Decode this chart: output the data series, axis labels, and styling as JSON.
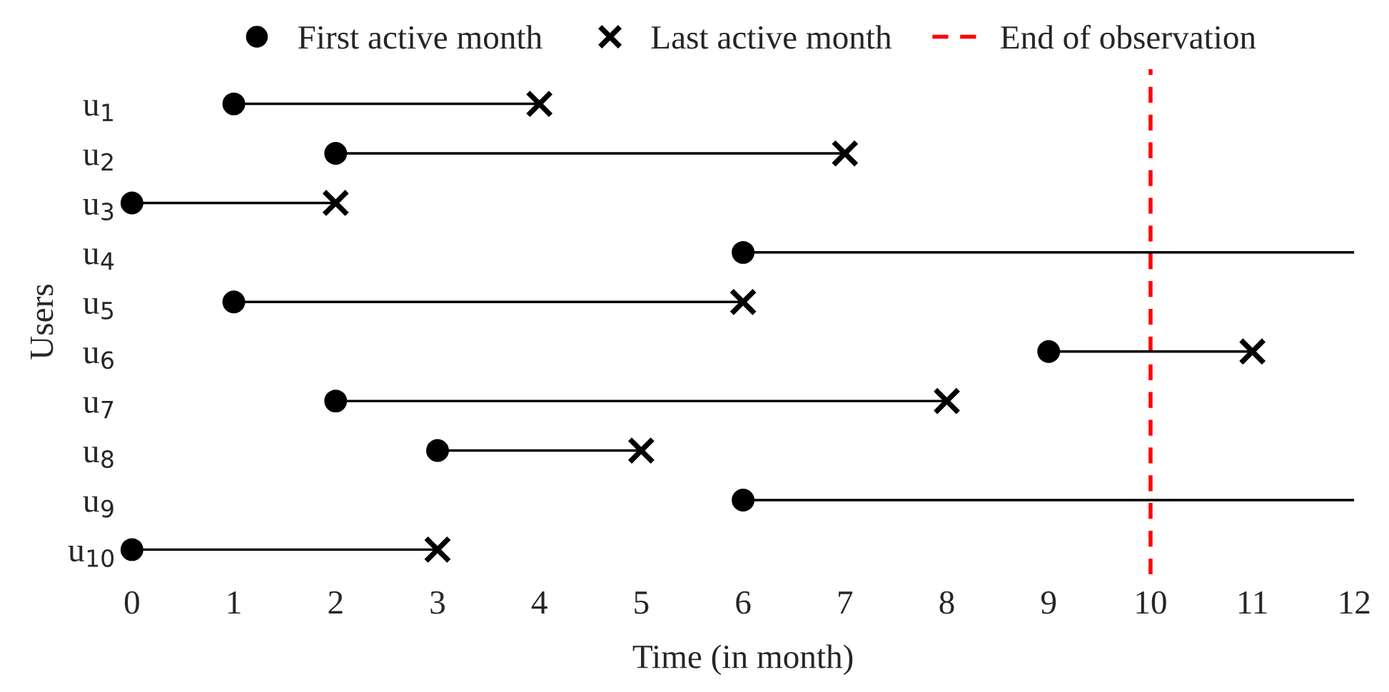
{
  "chart_data": {
    "type": "scatter",
    "orientation": "horizontal",
    "xlabel": "Time (in month)",
    "ylabel": "Users",
    "categories": [
      "u$_{1}$",
      "u$_{2}$",
      "u$_{3}$",
      "u$_{4}$",
      "u$_{5}$",
      "u$_{6}$",
      "u$_{7}$",
      "u$_{8}$",
      "u$_{9}$",
      "u$_{10}$"
    ],
    "series": [
      {
        "type": "bar",
        "color": "#000000",
        "base": [
          1,
          2,
          0,
          6,
          1,
          9,
          2,
          3,
          6,
          0
        ],
        "values": [
          3,
          5,
          2,
          6,
          5,
          2,
          6,
          2,
          6,
          3
        ]
      },
      {
        "name": "First active month",
        "color": "#000000",
        "marker": "circle",
        "values": [
          1,
          2,
          0,
          6,
          1,
          9,
          2,
          3,
          6,
          0
        ]
      },
      {
        "name": "Last active month",
        "color": "#000000",
        "marker": "cross",
        "values": [
          4,
          7,
          2,
          null,
          6,
          11,
          8,
          5,
          null,
          3
        ]
      }
    ],
    "xlim": [
      0,
      12
    ],
    "xticks": [
      0,
      1,
      2,
      3,
      4,
      5,
      6,
      7,
      8,
      9,
      10,
      11,
      12
    ],
    "ref_lines": [
      {
        "axis": "x",
        "value": 10,
        "label": "End of observation",
        "color": "#ff0000",
        "line_style": "dashed"
      }
    ],
    "legend": "top",
    "grid": false
  }
}
